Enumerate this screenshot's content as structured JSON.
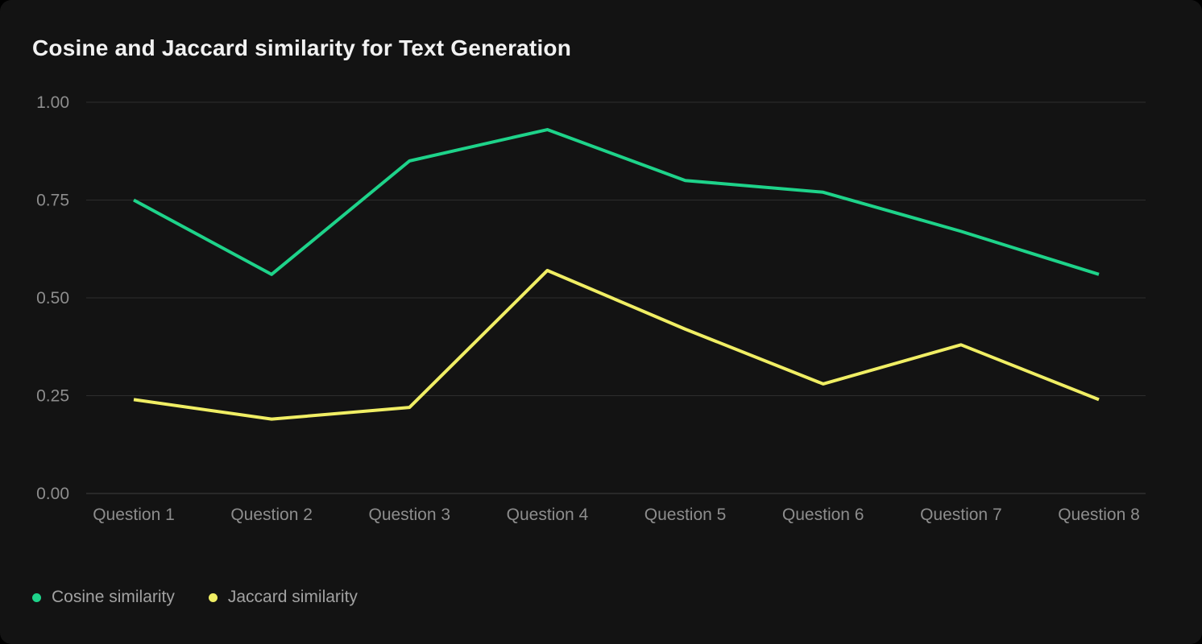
{
  "chart_data": {
    "type": "line",
    "title": "Cosine and Jaccard similarity for Text Generation",
    "categories": [
      "Question 1",
      "Question 2",
      "Question 3",
      "Question 4",
      "Question 5",
      "Question 6",
      "Question 7",
      "Question 8"
    ],
    "series": [
      {
        "name": "Cosine similarity",
        "color": "#1ed38a",
        "values": [
          0.75,
          0.56,
          0.85,
          0.93,
          0.8,
          0.77,
          0.67,
          0.56
        ]
      },
      {
        "name": "Jaccard similarity",
        "color": "#f0ee64",
        "values": [
          0.24,
          0.19,
          0.22,
          0.57,
          0.42,
          0.28,
          0.38,
          0.24
        ]
      }
    ],
    "xlabel": "",
    "ylabel": "",
    "ylim": [
      0.0,
      1.0
    ],
    "yticks": [
      0.0,
      0.25,
      0.5,
      0.75,
      1.0
    ],
    "ytick_labels": [
      "0.00",
      "0.25",
      "0.50",
      "0.75",
      "1.00"
    ],
    "grid": "horizontal",
    "legend_position": "bottom-left",
    "colors": {
      "background": "#131313",
      "gridline": "#2d2d2d",
      "baseline": "#3f3f3f",
      "tick_text": "#8d8d8d",
      "title_text": "#f2f2f2",
      "legend_text": "#a2a2a2"
    }
  }
}
